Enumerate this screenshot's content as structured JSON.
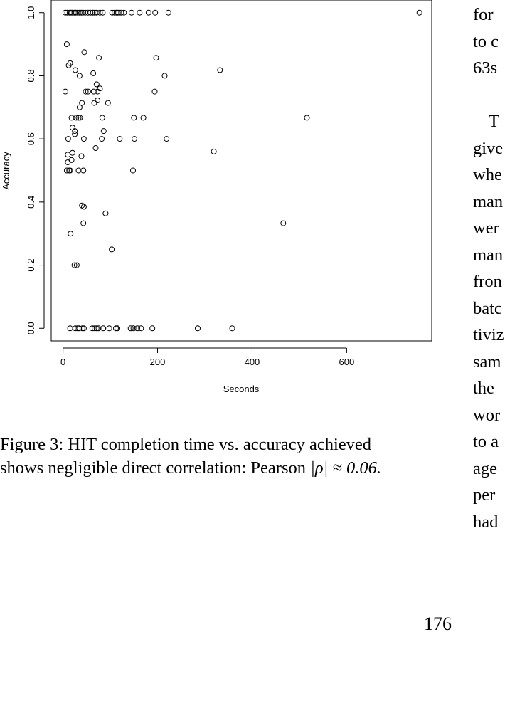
{
  "chart_data": {
    "type": "scatter",
    "xlabel": "Seconds",
    "ylabel": "Accuracy",
    "xlim": [
      -25,
      780
    ],
    "ylim": [
      -0.04,
      1.04
    ],
    "xticks": [
      0,
      200,
      400,
      600
    ],
    "yticks": [
      0.0,
      0.2,
      0.4,
      0.6,
      0.8,
      1.0
    ],
    "grid": false,
    "points": [
      [
        5,
        1.0
      ],
      [
        9,
        1.0
      ],
      [
        14,
        1.0
      ],
      [
        17,
        1.0
      ],
      [
        20,
        1.0
      ],
      [
        24,
        1.0
      ],
      [
        27,
        1.0
      ],
      [
        31,
        1.0
      ],
      [
        35,
        1.0
      ],
      [
        39,
        1.0
      ],
      [
        42,
        1.0
      ],
      [
        47,
        1.0
      ],
      [
        53,
        1.0
      ],
      [
        58,
        1.0
      ],
      [
        63,
        1.0
      ],
      [
        67,
        1.0
      ],
      [
        71,
        1.0
      ],
      [
        78,
        1.0
      ],
      [
        84,
        1.0
      ],
      [
        104,
        1.0
      ],
      [
        109,
        1.0
      ],
      [
        113,
        1.0
      ],
      [
        116,
        1.0
      ],
      [
        119,
        1.0
      ],
      [
        123,
        1.0
      ],
      [
        129,
        1.0
      ],
      [
        145,
        1.0
      ],
      [
        162,
        1.0
      ],
      [
        181,
        1.0
      ],
      [
        195,
        1.0
      ],
      [
        223,
        1.0
      ],
      [
        754,
        1.0
      ],
      [
        8,
        0.9
      ],
      [
        45,
        0.875
      ],
      [
        12,
        0.833
      ],
      [
        15,
        0.84
      ],
      [
        76,
        0.857
      ],
      [
        197,
        0.857
      ],
      [
        26,
        0.818
      ],
      [
        35,
        0.8
      ],
      [
        64,
        0.808
      ],
      [
        215,
        0.8
      ],
      [
        332,
        0.818
      ],
      [
        71,
        0.773
      ],
      [
        78,
        0.76
      ],
      [
        5,
        0.75
      ],
      [
        48,
        0.75
      ],
      [
        53,
        0.75
      ],
      [
        65,
        0.75
      ],
      [
        73,
        0.75
      ],
      [
        194,
        0.75
      ],
      [
        73,
        0.722
      ],
      [
        40,
        0.714
      ],
      [
        66,
        0.714
      ],
      [
        95,
        0.714
      ],
      [
        35,
        0.7
      ],
      [
        18,
        0.667
      ],
      [
        28,
        0.667
      ],
      [
        33,
        0.667
      ],
      [
        36,
        0.667
      ],
      [
        83,
        0.667
      ],
      [
        150,
        0.667
      ],
      [
        170,
        0.667
      ],
      [
        516,
        0.667
      ],
      [
        20,
        0.636
      ],
      [
        25,
        0.625
      ],
      [
        86,
        0.625
      ],
      [
        25,
        0.615
      ],
      [
        11,
        0.6
      ],
      [
        44,
        0.6
      ],
      [
        82,
        0.6
      ],
      [
        120,
        0.6
      ],
      [
        151,
        0.6
      ],
      [
        219,
        0.6
      ],
      [
        69,
        0.571
      ],
      [
        20,
        0.556
      ],
      [
        10,
        0.55
      ],
      [
        39,
        0.545
      ],
      [
        319,
        0.56
      ],
      [
        18,
        0.533
      ],
      [
        10,
        0.526
      ],
      [
        8,
        0.5
      ],
      [
        13,
        0.5
      ],
      [
        15,
        0.5
      ],
      [
        33,
        0.5
      ],
      [
        43,
        0.5
      ],
      [
        148,
        0.5
      ],
      [
        40,
        0.389
      ],
      [
        44,
        0.385
      ],
      [
        90,
        0.364
      ],
      [
        466,
        0.333
      ],
      [
        43,
        0.333
      ],
      [
        16,
        0.3
      ],
      [
        103,
        0.25
      ],
      [
        24,
        0.2
      ],
      [
        29,
        0.2
      ],
      [
        15,
        0.0
      ],
      [
        26,
        0.0
      ],
      [
        31,
        0.0
      ],
      [
        34,
        0.0
      ],
      [
        41,
        0.0
      ],
      [
        44,
        0.0
      ],
      [
        62,
        0.0
      ],
      [
        67,
        0.0
      ],
      [
        71,
        0.0
      ],
      [
        75,
        0.0
      ],
      [
        85,
        0.0
      ],
      [
        98,
        0.0
      ],
      [
        112,
        0.0
      ],
      [
        115,
        0.0
      ],
      [
        143,
        0.0
      ],
      [
        149,
        0.0
      ],
      [
        157,
        0.0
      ],
      [
        165,
        0.0
      ],
      [
        189,
        0.0
      ],
      [
        285,
        0.0
      ],
      [
        358,
        0.0
      ]
    ]
  },
  "caption": {
    "line1": "Figure 3:  HIT completion time vs. accuracy achieved",
    "line2_text": "shows negligible direct correlation: Pearson ",
    "line2_math": "|ρ| ≈ 0.06."
  },
  "side_text": [
    "for",
    "to c",
    "63s",
    "",
    "T",
    "give",
    "whe",
    "man",
    "wer",
    "man",
    "fron",
    "batc",
    "tiviz",
    "sam",
    "the",
    "wor",
    "to a",
    "age",
    "per",
    "had"
  ],
  "page_number": "176"
}
